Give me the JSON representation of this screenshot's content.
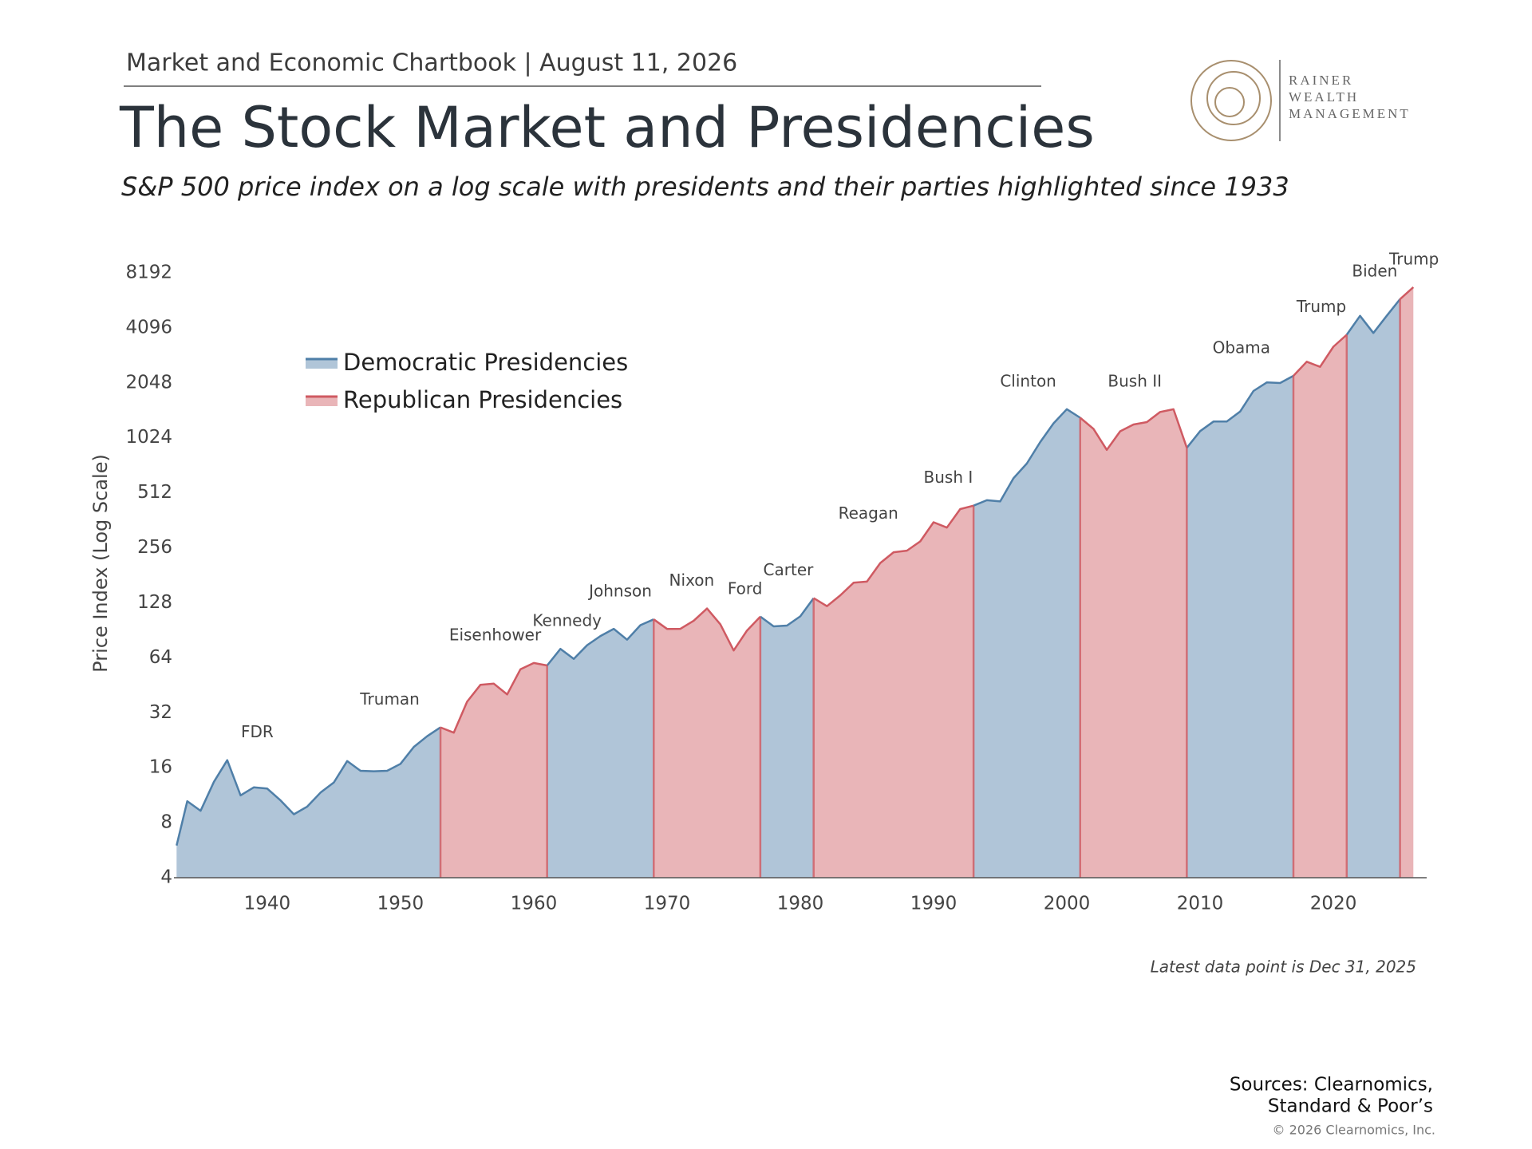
{
  "header": {
    "kicker": "Market and Economic Chartbook | August 11, 2026",
    "logo": [
      "RAINER",
      "WEALTH",
      "MANAGEMENT"
    ]
  },
  "chart_data": {
    "type": "area",
    "title": "The Stock Market and Presidencies",
    "subtitle": "S&P 500 price index on a log scale with presidents and their parties highlighted since 1933",
    "y_label": "Price Index (Log Scale)",
    "yscale": "log",
    "xlim": [
      1933,
      2027
    ],
    "xticks": [
      1940,
      1950,
      1960,
      1970,
      1980,
      1990,
      2000,
      2010,
      2020
    ],
    "ylim": [
      4,
      8192
    ],
    "yticks": [
      4,
      8,
      16,
      32,
      64,
      128,
      256,
      512,
      1024,
      2048,
      4096,
      8192
    ],
    "x": [
      1933.2,
      1934,
      1935,
      1936,
      1937,
      1938,
      1939,
      1940,
      1941,
      1942,
      1943,
      1944,
      1945,
      1946,
      1947,
      1948,
      1949,
      1950,
      1951,
      1952,
      1953,
      1954,
      1955,
      1956,
      1957,
      1958,
      1959,
      1960,
      1961,
      1962,
      1963,
      1964,
      1965,
      1966,
      1967,
      1968,
      1969,
      1970,
      1971,
      1972,
      1973,
      1974,
      1975,
      1976,
      1977,
      1978,
      1979,
      1980,
      1981,
      1982,
      1983,
      1984,
      1985,
      1986,
      1987,
      1988,
      1989,
      1990,
      1991,
      1992,
      1993,
      1994,
      1995,
      1996,
      1997,
      1998,
      1999,
      2000,
      2001,
      2002,
      2003,
      2004,
      2005,
      2006,
      2007,
      2008,
      2009,
      2010,
      2011,
      2012,
      2013,
      2014,
      2015,
      2016,
      2017,
      2018,
      2019,
      2020,
      2021,
      2022,
      2023,
      2024,
      2025,
      2026
    ],
    "series": [
      {
        "name": "Democratic Presidencies",
        "color": "#4f7fa8",
        "values": [
          6.0,
          10.5,
          9.3,
          13.4,
          17.6,
          11.3,
          12.5,
          12.3,
          10.6,
          8.9,
          9.8,
          11.7,
          13.3,
          17.4,
          15.4,
          15.3,
          15.4,
          16.8,
          20.8,
          23.8,
          26.6,
          null,
          null,
          null,
          null,
          null,
          null,
          null,
          58.1,
          71.6,
          63.1,
          75.0,
          84.2,
          92.2,
          80.4,
          96.5,
          103.9,
          null,
          null,
          null,
          null,
          null,
          null,
          null,
          107.5,
          95.1,
          96.1,
          107.9,
          135.8,
          null,
          null,
          null,
          null,
          null,
          null,
          null,
          null,
          null,
          null,
          null,
          435.7,
          466.5,
          459.3,
          615.9,
          740.7,
          970.4,
          1229.2,
          1469.3,
          1320.3,
          null,
          null,
          null,
          null,
          null,
          null,
          null,
          903.3,
          1115.1,
          1257.6,
          1257.6,
          1426.2,
          1848.4,
          2058.9,
          2043.9,
          2238.8,
          null,
          null,
          null,
          3756.1,
          4766.2,
          3839.5,
          4769.8,
          5881.6,
          null
        ]
      },
      {
        "name": "Republican Presidencies",
        "color": "#cf5a62",
        "values": [
          null,
          null,
          null,
          null,
          null,
          null,
          null,
          null,
          null,
          null,
          null,
          null,
          null,
          null,
          null,
          null,
          null,
          null,
          null,
          null,
          26.6,
          24.9,
          36.8,
          45.5,
          46.2,
          40.3,
          55.4,
          59.9,
          58.1,
          null,
          null,
          null,
          null,
          null,
          null,
          null,
          103.9,
          92.1,
          92.2,
          102.1,
          119.1,
          97.6,
          70.2,
          90.2,
          107.5,
          null,
          null,
          null,
          135.8,
          122.6,
          140.6,
          164.9,
          167.2,
          211.3,
          242.2,
          247.1,
          277.7,
          353.4,
          330.2,
          417.1,
          435.7,
          null,
          null,
          null,
          null,
          null,
          null,
          null,
          1320.3,
          1148.1,
          879.8,
          1111.9,
          1211.9,
          1248.3,
          1418.3,
          1468.4,
          903.3,
          null,
          null,
          null,
          null,
          null,
          null,
          null,
          2238.8,
          2673.6,
          2506.9,
          3230.8,
          3756.1,
          null,
          null,
          null,
          5881.6,
          6845.5
        ]
      }
    ],
    "presidents": [
      {
        "label": "FDR",
        "start": 1933.2
      },
      {
        "label": "Truman",
        "start": 1945.3
      },
      {
        "label": "Eisenhower",
        "start": 1953.1
      },
      {
        "label": "Kennedy",
        "start": 1961.1
      },
      {
        "label": "Johnson",
        "start": 1963.9
      },
      {
        "label": "Nixon",
        "start": 1969.1
      },
      {
        "label": "Ford",
        "start": 1974.6
      },
      {
        "label": "Carter",
        "start": 1977.1
      },
      {
        "label": "Reagan",
        "start": 1981.1
      },
      {
        "label": "Bush I",
        "start": 1989.1
      },
      {
        "label": "Clinton",
        "start": 1993.1
      },
      {
        "label": "Bush II",
        "start": 2001.1
      },
      {
        "label": "Obama",
        "start": 2009.1
      },
      {
        "label": "Trump",
        "start": 2017.1
      },
      {
        "label": "Biden",
        "start": 2021.1
      },
      {
        "label": "Trump",
        "start": 2025.1
      }
    ],
    "note": "Latest data point is Dec 31, 2025"
  },
  "footer": {
    "sources": [
      "Sources: Clearnomics,",
      "Standard & Poor’s"
    ],
    "copyright": "© 2026 Clearnomics, Inc."
  }
}
